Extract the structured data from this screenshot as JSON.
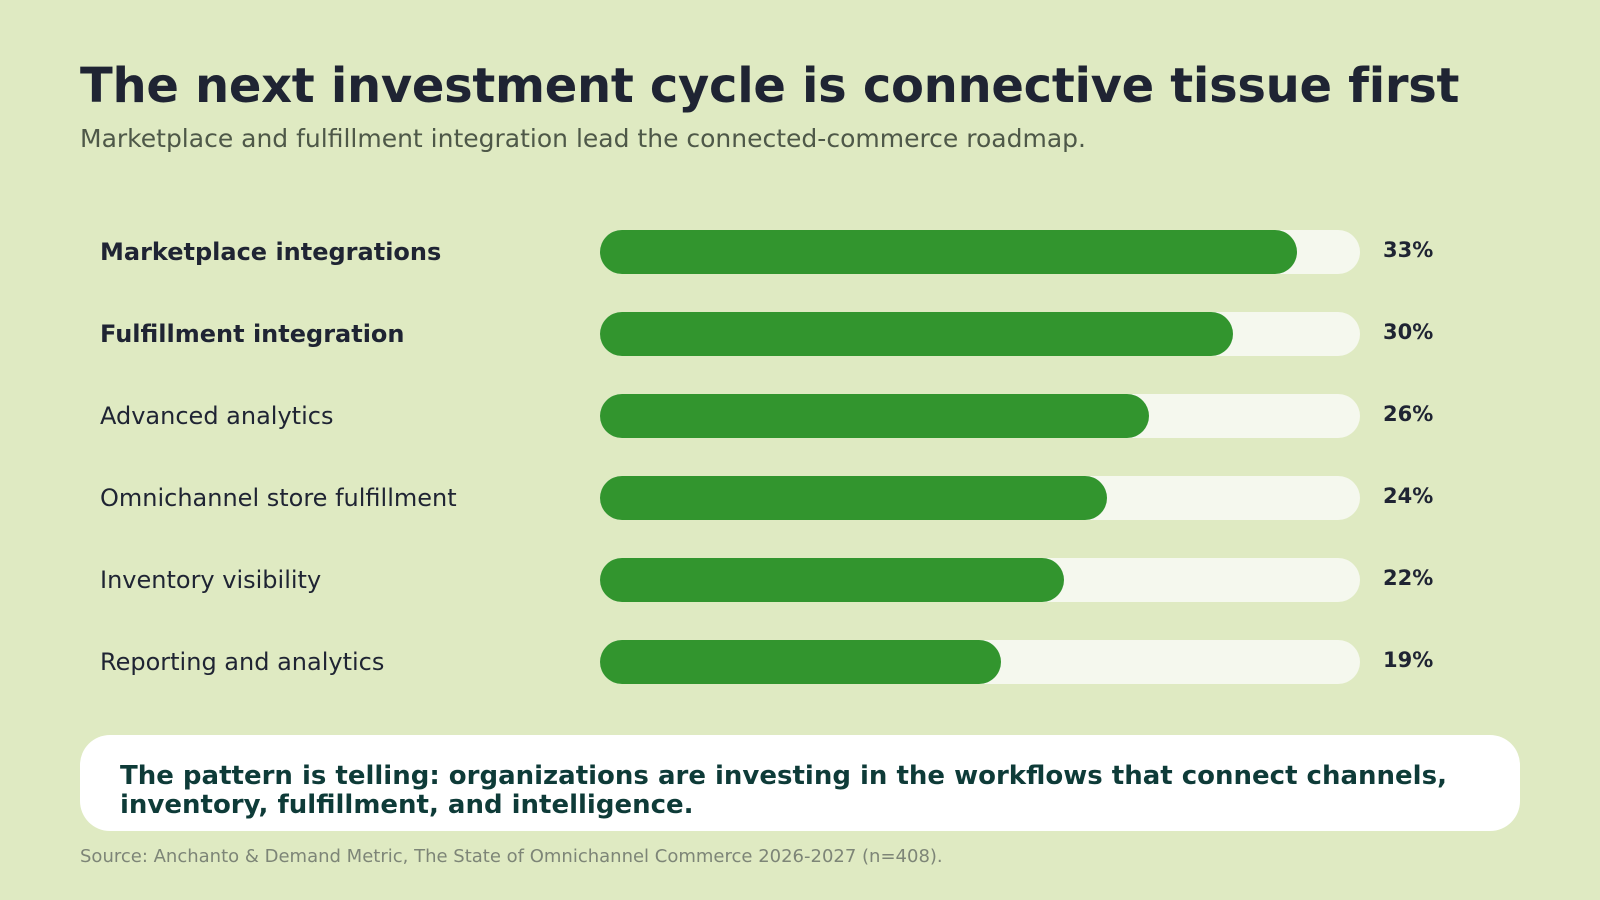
{
  "title": "The next investment cycle is connective tissue first",
  "subtitle": "Marketplace and fulfillment integration lead the connected-commerce roadmap.",
  "chart_data": {
    "type": "bar",
    "orientation": "horizontal",
    "categories": [
      "Marketplace integrations",
      "Fulfillment integration",
      "Advanced analytics",
      "Omnichannel store fulfillment",
      "Inventory visibility",
      "Reporting and analytics"
    ],
    "values": [
      33,
      30,
      26,
      24,
      22,
      19
    ],
    "value_labels": [
      "33%",
      "30%",
      "26%",
      "24%",
      "22%",
      "19%"
    ],
    "emphasized": [
      true,
      true,
      false,
      false,
      false,
      false
    ],
    "xlim": [
      0,
      36
    ],
    "grid": false,
    "colors": {
      "bar": "#32952e",
      "track": "#f5f8ee",
      "background": "#dfeac2",
      "text": "#1f2433"
    }
  },
  "callout": {
    "text": "The pattern is telling: organizations are investing in the workflows that connect channels, inventory, fulfillment, and intelligence."
  },
  "source": "Source: Anchanto & Demand Metric, The State of Omnichannel Commerce 2026-2027 (n=408)."
}
